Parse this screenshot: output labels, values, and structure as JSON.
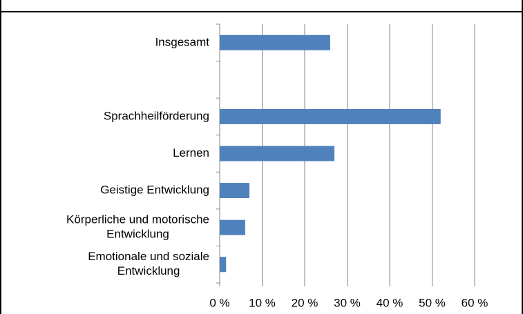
{
  "chart_data": {
    "type": "bar",
    "orientation": "horizontal",
    "categories": [
      "Insgesamt",
      null,
      "Sprachheilförderung",
      "Lernen",
      "Geistige Entwicklung",
      [
        "Körperliche und motorische",
        "Entwicklung"
      ],
      [
        "Emotionale und soziale",
        "Entwicklung"
      ]
    ],
    "values": [
      26,
      null,
      52,
      27,
      7,
      6,
      1.5
    ],
    "color": "#4f81bd",
    "xlim": [
      0,
      60
    ],
    "xticks": [
      {
        "value": 0,
        "label": "0 %"
      },
      {
        "value": 10,
        "label": "10 %"
      },
      {
        "value": 20,
        "label": "20 %"
      },
      {
        "value": 30,
        "label": "30 %"
      },
      {
        "value": 40,
        "label": "40 %"
      },
      {
        "value": 50,
        "label": "50 %"
      },
      {
        "value": 60,
        "label": "60 %"
      }
    ],
    "grid": true
  }
}
